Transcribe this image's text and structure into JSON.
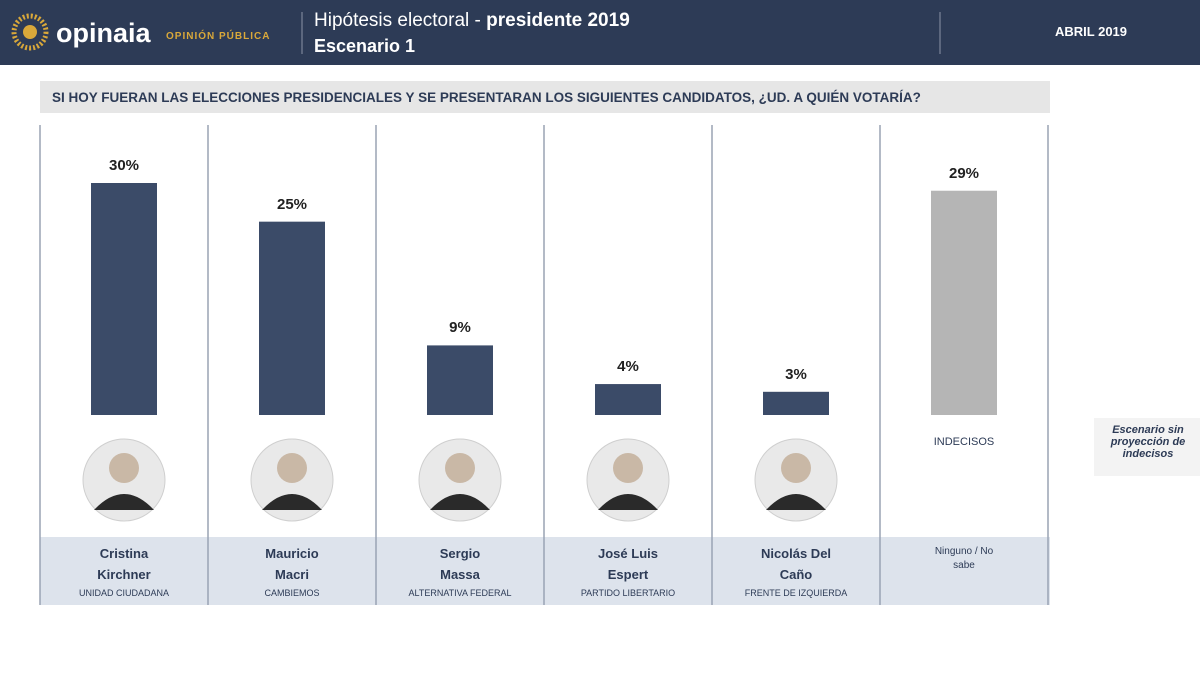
{
  "header": {
    "brand": "opinaia",
    "brand_sub": "OPINIÓN PÚBLICA",
    "title_light": "Hipótesis electoral - ",
    "title_bold": "presidente 2019",
    "subtitle": "Escenario 1",
    "date": "ABRIL 2019"
  },
  "chart_data": {
    "type": "bar",
    "title": "SI HOY FUERAN LAS ELECCIONES PRESIDENCIALES Y SE PRESENTARAN LOS SIGUIENTES CANDIDATOS, ¿UD. A QUIÉN VOTARÍA?",
    "categories": [
      "Cristina Kirchner",
      "Mauricio Macri",
      "Sergio Massa",
      "José Luis Espert",
      "Nicolás Del Caño",
      "Ninguno / No sabe"
    ],
    "parties": [
      "UNIDAD CIUDADANA",
      "CAMBIEMOS",
      "ALTERNATIVA FEDERAL",
      "PARTIDO LIBERTARIO",
      "FRENTE DE IZQUIERDA",
      null
    ],
    "values": [
      30,
      25,
      9,
      4,
      3,
      29
    ],
    "value_labels": [
      "30%",
      "25%",
      "9%",
      "4%",
      "3%",
      "29%"
    ],
    "colors": [
      "#3b4b68",
      "#3b4b68",
      "#3b4b68",
      "#3b4b68",
      "#3b4b68",
      "#b5b5b5"
    ],
    "undecided_label": "INDECISOS",
    "side_note": "Escenario sin proyección de indecisos"
  }
}
